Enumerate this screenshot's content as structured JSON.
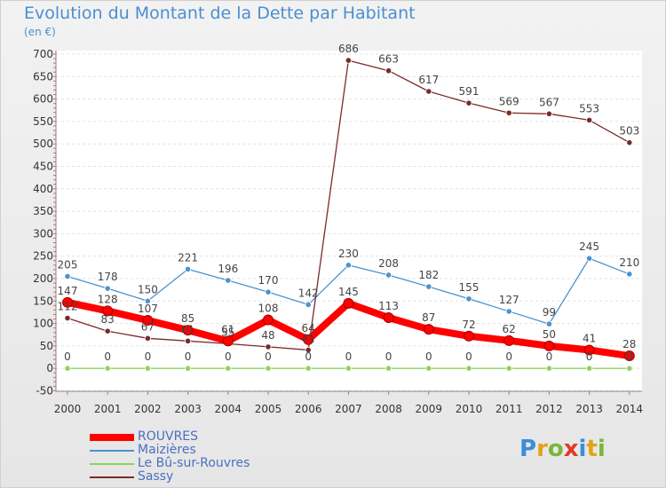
{
  "title": "Evolution du Montant de la Dette par Habitant",
  "unit": "(en €)",
  "logo": "Proxiti",
  "chart_data": {
    "type": "line",
    "title": "Evolution du Montant de la Dette par Habitant",
    "ylabel": "(en €)",
    "xlabel": "",
    "x": [
      "2000",
      "2001",
      "2002",
      "2003",
      "2004",
      "2005",
      "2006",
      "2007",
      "2008",
      "2009",
      "2010",
      "2011",
      "2012",
      "2013",
      "2014"
    ],
    "yticks": [
      -50,
      0,
      50,
      100,
      150,
      200,
      250,
      300,
      350,
      400,
      450,
      500,
      550,
      600,
      650,
      700
    ],
    "ylim": [
      -50,
      700
    ],
    "grid": "horizontal",
    "legend_position": "bottom-left",
    "series": [
      {
        "name": "ROUVRES",
        "color": "#ff0000",
        "values": [
          147,
          128,
          107,
          85,
          61,
          108,
          64,
          145,
          113,
          87,
          72,
          62,
          50,
          41,
          28
        ]
      },
      {
        "name": "Maizières",
        "color": "#4b93cf",
        "values": [
          205,
          178,
          150,
          221,
          196,
          170,
          142,
          230,
          208,
          182,
          155,
          127,
          99,
          245,
          210
        ]
      },
      {
        "name": "Le Bû-sur-Rouvres",
        "color": "#8fd35a",
        "values": [
          0,
          0,
          0,
          0,
          0,
          0,
          0,
          0,
          0,
          0,
          0,
          0,
          0,
          0,
          0
        ]
      },
      {
        "name": "Sassy",
        "color": "#7a2a2a",
        "values": [
          112,
          83,
          67,
          61,
          55,
          48,
          41,
          686,
          663,
          617,
          591,
          569,
          567,
          553,
          503
        ]
      }
    ]
  }
}
